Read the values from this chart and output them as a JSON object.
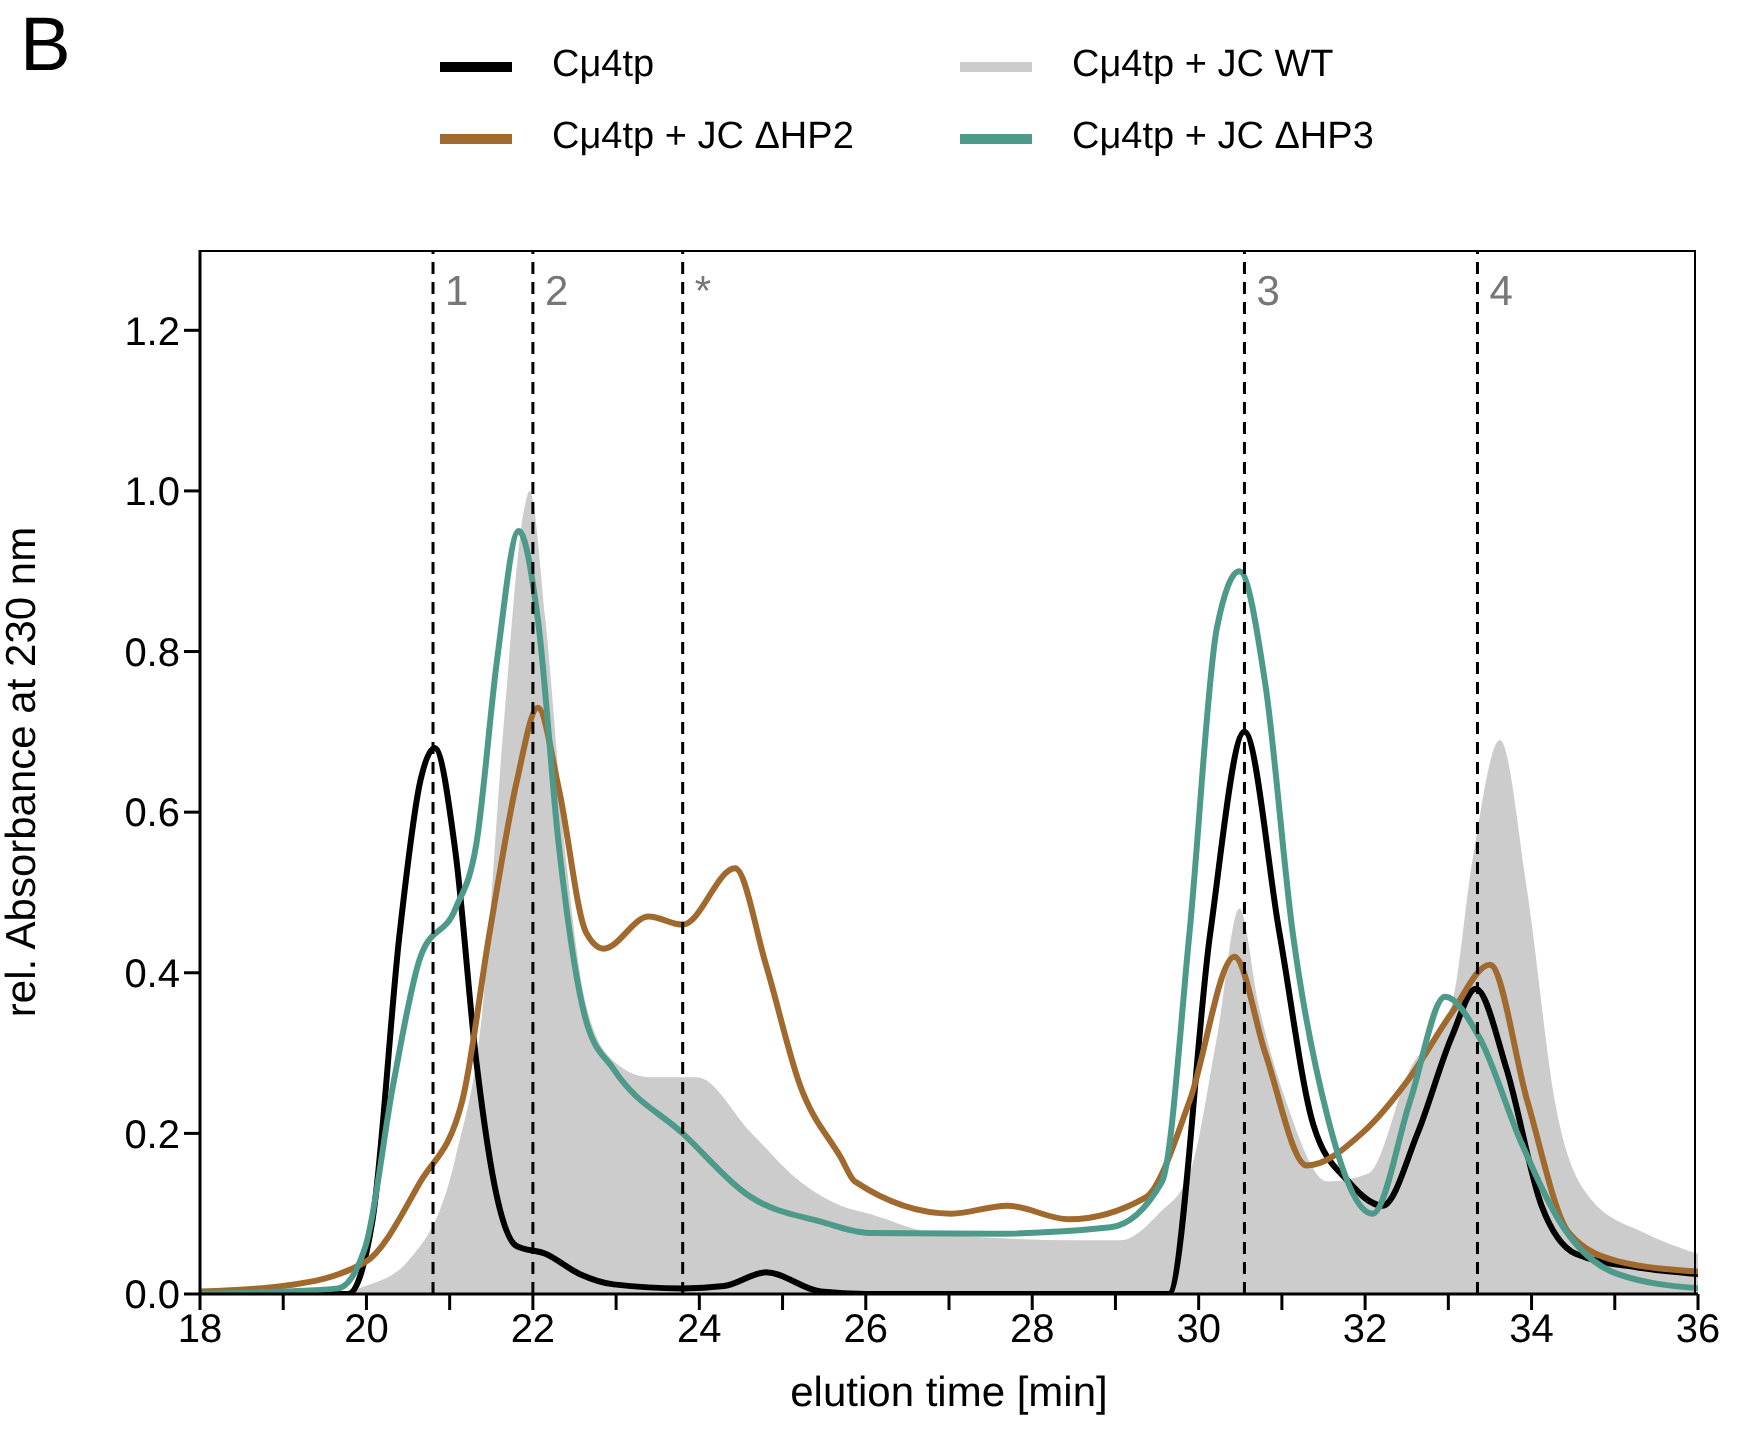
{
  "chart_data": {
    "type": "line",
    "xlabel": "elution time [min]",
    "ylabel": "rel. Absorbance at 230 nm",
    "annotations": [
      "B",
      {
        "text": "1",
        "x": 20.8,
        "y": 1.25
      },
      {
        "text": "2",
        "x": 22,
        "y": 1.25
      },
      {
        "text": "*",
        "x": 23.8,
        "y": 1.25
      },
      {
        "text": "3",
        "x": 30.55,
        "y": 1.25
      },
      {
        "text": "4",
        "x": 33.35,
        "y": 1.25
      }
    ],
    "legend": "top",
    "line_style": "solid",
    "xlim": [
      18,
      36
    ],
    "ylim": [
      0,
      1.3
    ],
    "xticks": [
      18,
      {
        "value": 19,
        "label": null
      },
      20,
      {
        "value": 21,
        "label": null
      },
      22,
      {
        "value": 23,
        "label": null
      },
      24,
      {
        "value": 25,
        "label": null
      },
      26,
      {
        "value": 27,
        "label": null
      },
      28,
      {
        "value": 29,
        "label": null
      },
      30,
      {
        "value": 31,
        "label": null
      },
      32,
      {
        "value": 33,
        "label": null
      },
      34,
      {
        "value": 35,
        "label": null
      },
      36
    ],
    "yticks": [
      {
        "value": 0,
        "label": "0.0"
      },
      {
        "value": 0.2,
        "label": "0.2"
      },
      {
        "value": 0.4,
        "label": "0.4"
      },
      {
        "value": 0.6,
        "label": "0.6"
      },
      {
        "value": 0.8,
        "label": "0.8"
      },
      {
        "value": 1,
        "label": "1.0"
      },
      {
        "value": 1.2,
        "label": "1.2"
      }
    ],
    "ref_lines": [
      {
        "axis": "x",
        "value": 20.8,
        "color": "#000000",
        "line_style": "dashed"
      },
      {
        "axis": "x",
        "value": 22,
        "color": "#000000",
        "line_style": "dashed"
      },
      {
        "axis": "x",
        "value": 23.8,
        "color": "#000000",
        "line_style": "dashed"
      },
      {
        "axis": "x",
        "value": 30.55,
        "color": "#000000",
        "line_style": "dashed"
      },
      {
        "axis": "x",
        "value": 33.35,
        "color": "#000000",
        "line_style": "dashed"
      }
    ],
    "series": [
      {
        "name": "Cμ4tp",
        "color": "#000000",
        "x": [
          18,
          19,
          19.78,
          20.07,
          20.4,
          20.65,
          20.82,
          21.07,
          21.32,
          21.57,
          21.8,
          22.15,
          22.56,
          22.97,
          23.8,
          24.3,
          24.8,
          25.46,
          26,
          28,
          29.64,
          30.14,
          30.55,
          30.97,
          31.38,
          31.8,
          32.21,
          32.63,
          33.04,
          33.33,
          33.7,
          34.12,
          34.53,
          35.28,
          36
        ],
        "values": [
          0,
          0,
          0,
          0.09,
          0.45,
          0.64,
          0.68,
          0.55,
          0.29,
          0.12,
          0.06,
          0.05,
          0.025,
          0.012,
          0.007,
          0.01,
          0.027,
          0.003,
          0,
          0,
          0,
          0.45,
          0.7,
          0.45,
          0.21,
          0.14,
          0.11,
          0.2,
          0.32,
          0.38,
          0.28,
          0.11,
          0.05,
          0.033,
          0.025
        ]
      },
      {
        "name": "Cμ4tp + JC WT",
        "type": "area",
        "color": "#cccccc",
        "x": [
          18,
          19.5,
          19.99,
          20.49,
          21.07,
          21.4,
          21.65,
          21.9,
          21.96,
          22.15,
          22.4,
          22.64,
          22.97,
          23.39,
          23.97,
          24.63,
          25.21,
          25.7,
          26.04,
          26.87,
          28.53,
          29.06,
          29.52,
          29.89,
          30.22,
          30.49,
          30.72,
          31.05,
          31.55,
          32.04,
          32.54,
          33.04,
          33.29,
          33.62,
          33.95,
          34.28,
          34.7,
          35.36,
          36
        ],
        "values": [
          0,
          0,
          0.01,
          0.04,
          0.17,
          0.36,
          0.71,
          0.98,
          1,
          0.84,
          0.54,
          0.36,
          0.29,
          0.27,
          0.27,
          0.2,
          0.14,
          0.11,
          0.1,
          0.075,
          0.067,
          0.067,
          0.1,
          0.15,
          0.32,
          0.48,
          0.36,
          0.24,
          0.14,
          0.15,
          0.28,
          0.36,
          0.54,
          0.69,
          0.5,
          0.24,
          0.12,
          0.076,
          0.05
        ]
      },
      {
        "name": "Cμ4tp + JC ΔHP2",
        "color": "#a0692e",
        "x": [
          18,
          19,
          19.99,
          20.65,
          21.15,
          21.48,
          21.81,
          22.06,
          22.31,
          22.64,
          22.85,
          23.39,
          23.8,
          24.43,
          24.8,
          25.21,
          25.7,
          25.87,
          27.03,
          27.7,
          28.44,
          29.36,
          29.89,
          30.43,
          30.8,
          31.3,
          31.96,
          32.54,
          33.04,
          33.5,
          33.95,
          34.45,
          35.03,
          36
        ],
        "values": [
          0.003,
          0.01,
          0.04,
          0.14,
          0.24,
          0.45,
          0.64,
          0.73,
          0.63,
          0.45,
          0.43,
          0.47,
          0.46,
          0.53,
          0.41,
          0.26,
          0.17,
          0.14,
          0.1,
          0.11,
          0.093,
          0.12,
          0.24,
          0.42,
          0.3,
          0.16,
          0.2,
          0.27,
          0.35,
          0.41,
          0.24,
          0.076,
          0.041,
          0.028
        ]
      },
      {
        "name": "Cμ4tp + JC ΔHP3",
        "color": "#4e9a8a",
        "x": [
          18,
          19,
          19.66,
          19.99,
          20.32,
          20.65,
          21.07,
          21.32,
          21.57,
          21.83,
          22.06,
          22.31,
          22.64,
          22.97,
          23.8,
          24.63,
          25.46,
          26.04,
          27.5,
          28.94,
          29.56,
          29.89,
          30.22,
          30.49,
          30.8,
          31.13,
          31.55,
          32.09,
          32.54,
          32.96,
          33.37,
          33.87,
          34.37,
          35.03,
          36
        ],
        "values": [
          0,
          0.003,
          0.007,
          0.06,
          0.26,
          0.42,
          0.48,
          0.56,
          0.79,
          0.95,
          0.84,
          0.56,
          0.34,
          0.28,
          0.2,
          0.12,
          0.09,
          0.076,
          0.075,
          0.083,
          0.14,
          0.45,
          0.83,
          0.9,
          0.76,
          0.45,
          0.22,
          0.1,
          0.24,
          0.37,
          0.32,
          0.19,
          0.085,
          0.025,
          0.007
        ]
      }
    ]
  }
}
